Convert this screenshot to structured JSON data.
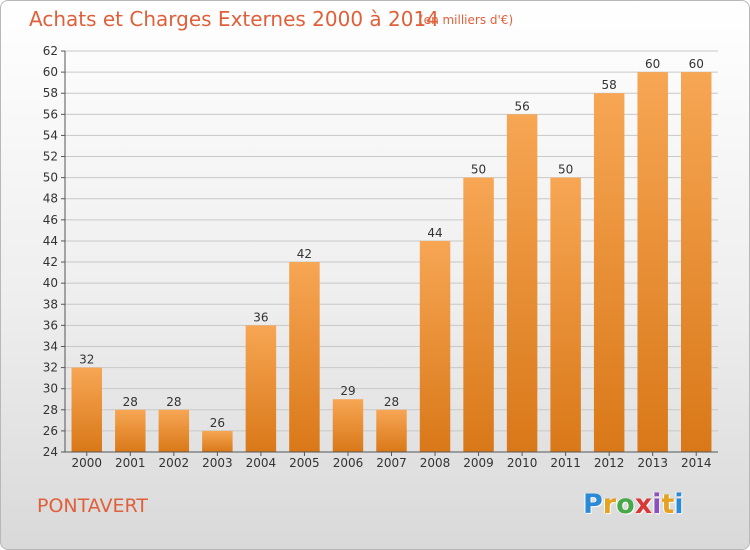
{
  "header": {
    "title": "Achats et Charges Externes 2000 à 2014",
    "subtitle": "(en milliers d'€)"
  },
  "footer": {
    "commune": "PONTAVERT",
    "logo": "Proxiti",
    "logo_colors": [
      "#2b8ad8",
      "#e8a020",
      "#48a848",
      "#d83838",
      "#8a50c0",
      "#e8a020",
      "#2b8ad8"
    ]
  },
  "colors": {
    "bar_top": "#f7a654",
    "bar_bottom": "#d97818",
    "accent": "#e0603a",
    "grid": "#c8c8c8"
  },
  "chart_data": {
    "type": "bar",
    "categories": [
      "2000",
      "2001",
      "2002",
      "2003",
      "2004",
      "2005",
      "2006",
      "2007",
      "2008",
      "2009",
      "2010",
      "2011",
      "2012",
      "2013",
      "2014"
    ],
    "values": [
      32,
      28,
      28,
      26,
      36,
      42,
      29,
      28,
      44,
      50,
      56,
      50,
      58,
      60,
      60
    ],
    "title": "Achats et Charges Externes 2000 à 2014",
    "subtitle": "(en milliers d'€)",
    "xlabel": "",
    "ylabel": "",
    "ylim": [
      24,
      62
    ],
    "yticks": [
      24,
      26,
      28,
      30,
      32,
      34,
      36,
      38,
      40,
      42,
      44,
      46,
      48,
      50,
      52,
      54,
      56,
      58,
      60,
      62
    ],
    "grid": true,
    "data_labels": true
  }
}
